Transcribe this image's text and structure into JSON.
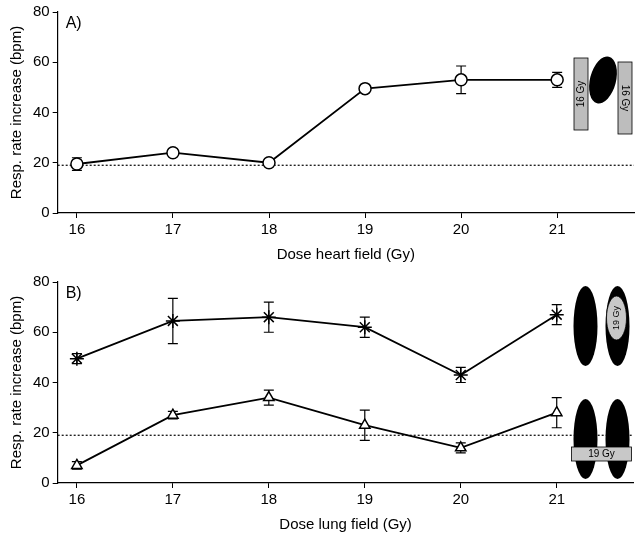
{
  "chart_data": [
    {
      "type": "line",
      "title": "A)",
      "x": [
        16,
        17,
        18,
        19,
        20,
        21
      ],
      "series": [
        {
          "color": "#000000",
          "marker": "circle",
          "line_style": "solid",
          "values": [
            19.5,
            24,
            20,
            49.5,
            53,
            53
          ],
          "errors": [
            2.5,
            1.5,
            1,
            1.5,
            5.5,
            3
          ]
        }
      ],
      "xlabel": "Dose heart field (Gy)",
      "ylabel": "Resp. rate increase (bpm)",
      "xlim": [
        15.8,
        21.8
      ],
      "xticks": [
        16,
        17,
        18,
        19,
        20,
        21
      ],
      "ylim": [
        0,
        80
      ],
      "yticks": [
        0,
        20,
        40,
        60,
        80
      ],
      "hline": 19,
      "annotations": [
        "16 Gy",
        "16 Gy"
      ],
      "grid": false
    },
    {
      "type": "line",
      "title": "B)",
      "x": [
        16,
        17,
        18,
        19,
        20,
        21
      ],
      "series": [
        {
          "color": "#000000",
          "marker": "star",
          "line_style": "solid",
          "values": [
            49.5,
            64.5,
            66,
            62,
            43,
            67
          ],
          "errors": [
            2,
            9,
            6,
            4,
            3,
            4
          ]
        },
        {
          "color": "#000000",
          "marker": "triangle",
          "line_style": "solid",
          "values": [
            7,
            27,
            34,
            23,
            14,
            28
          ],
          "errors": [
            1.5,
            1.5,
            3,
            6,
            2,
            6
          ]
        }
      ],
      "xlabel": "Dose lung field (Gy)",
      "ylabel": "Resp. rate increase (bpm)",
      "xlim": [
        15.8,
        21.8
      ],
      "xticks": [
        16,
        17,
        18,
        19,
        20,
        21
      ],
      "ylim": [
        0,
        80
      ],
      "yticks": [
        0,
        20,
        40,
        60,
        80
      ],
      "hline": 19,
      "annotations": [
        "19 Gy",
        "19 Gy"
      ],
      "grid": false
    }
  ]
}
